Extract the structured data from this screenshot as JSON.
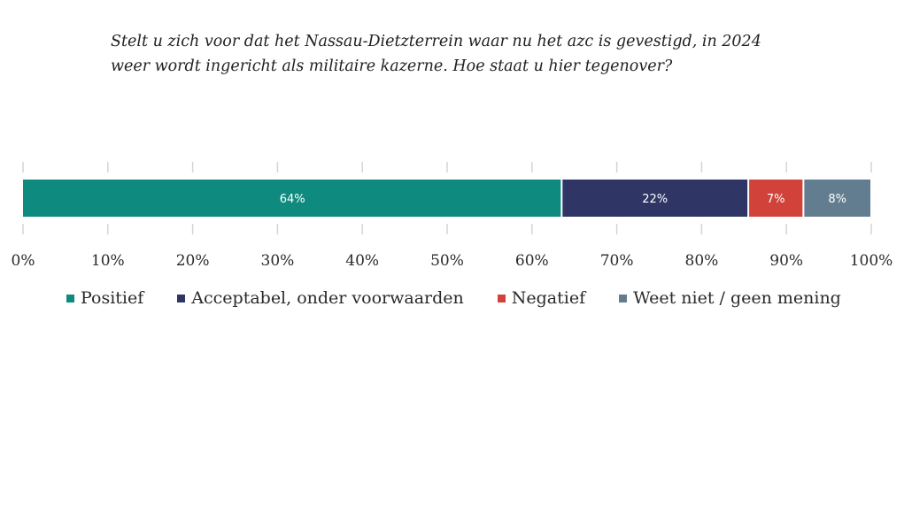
{
  "chart_data": {
    "type": "bar",
    "orientation": "horizontal-stacked",
    "title_lines": [
      "Stelt u zich voor dat het Nassau-Dietzterrein waar nu het azc is gevestigd, in 2024",
      "weer wordt ingericht als militaire kazerne. Hoe staat u hier tegenover?"
    ],
    "series": [
      {
        "name": "Positief",
        "values": [
          63.5
        ],
        "label": "64%",
        "color": "#0f8a7e"
      },
      {
        "name": "Acceptabel, onder voorwaarden",
        "values": [
          22
        ],
        "label": "22%",
        "color": "#2f3565"
      },
      {
        "name": "Negatief",
        "values": [
          6.5
        ],
        "label": "7%",
        "color": "#d1433a"
      },
      {
        "name": "Weet niet / geen mening",
        "values": [
          8
        ],
        "label": "8%",
        "color": "#627d8f"
      }
    ],
    "xlim": [
      0,
      100
    ],
    "x_ticks": [
      0,
      10,
      20,
      30,
      40,
      50,
      60,
      70,
      80,
      90,
      100
    ],
    "x_tick_labels": [
      "0%",
      "10%",
      "20%",
      "30%",
      "40%",
      "50%",
      "60%",
      "70%",
      "80%",
      "90%",
      "100%"
    ],
    "grid": false,
    "legend_position": "bottom"
  }
}
